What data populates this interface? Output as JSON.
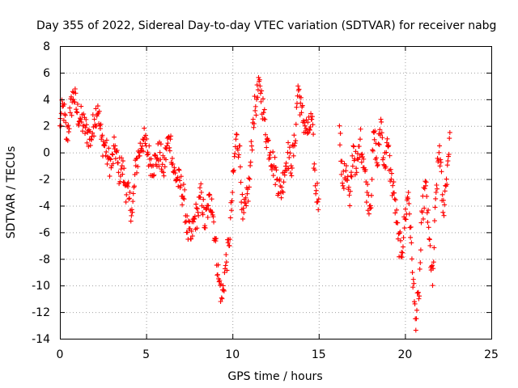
{
  "chart_data": {
    "type": "scatter",
    "title": "Day 355 of 2022, Sidereal Day-to-day VTEC variation (SDTVAR) for receiver nabg",
    "xlabel": "GPS time / hours",
    "ylabel": "SDTVAR / TECUs",
    "xlim": [
      0,
      25
    ],
    "ylim": [
      -14,
      8
    ],
    "xticks": [
      0,
      5,
      10,
      15,
      20,
      25
    ],
    "yticks": [
      -14,
      -12,
      -10,
      -8,
      -6,
      -4,
      -2,
      0,
      2,
      4,
      6,
      8
    ],
    "grid": true,
    "marker": "+",
    "color": "#ff0000",
    "series": [
      {
        "name": "SDTVAR",
        "x": [
          0.0,
          0.2,
          0.4,
          0.6,
          0.8,
          1.0,
          1.2,
          1.4,
          1.6,
          1.8,
          2.0,
          2.2,
          2.4,
          2.6,
          2.8,
          3.0,
          3.2,
          3.4,
          3.6,
          3.8,
          4.0,
          4.2,
          4.4,
          4.6,
          4.8,
          5.0,
          5.2,
          5.4,
          5.6,
          5.8,
          6.0,
          6.2,
          6.4,
          6.6,
          6.8,
          7.0,
          7.2,
          7.4,
          7.6,
          7.8,
          8.0,
          8.2,
          8.4,
          8.6,
          8.8,
          9.0,
          9.2,
          9.4,
          9.6,
          9.8,
          10.0,
          10.2,
          10.4,
          10.6,
          10.8,
          11.0,
          11.2,
          11.4,
          11.6,
          11.8,
          12.0,
          12.2,
          12.4,
          12.6,
          12.8,
          13.0,
          13.2,
          13.4,
          13.6,
          13.8,
          14.0,
          14.2,
          14.4,
          14.6,
          14.8,
          15.0,
          16.2,
          16.4,
          16.6,
          16.8,
          17.0,
          17.2,
          17.4,
          17.6,
          17.8,
          18.0,
          18.2,
          18.4,
          18.6,
          18.8,
          19.0,
          19.2,
          19.4,
          19.6,
          19.8,
          20.0,
          20.2,
          20.4,
          20.6,
          20.8,
          21.0,
          21.2,
          21.4,
          21.6,
          21.8,
          22.0,
          22.2,
          22.4,
          22.6
        ],
        "y": [
          2.0,
          3.5,
          1.0,
          3.0,
          4.5,
          3.0,
          2.5,
          2.0,
          1.5,
          1.0,
          2.5,
          3.5,
          1.0,
          0.5,
          -0.5,
          -1.0,
          0.5,
          -1.5,
          -1.0,
          -2.5,
          -3.5,
          -4.5,
          -1.0,
          0.0,
          1.0,
          0.5,
          -0.5,
          -1.0,
          -0.5,
          0.0,
          -1.5,
          0.5,
          1.0,
          -1.5,
          -2.0,
          -2.5,
          -3.5,
          -6.0,
          -6.5,
          -5.0,
          -4.5,
          -3.0,
          -5.5,
          -4.0,
          -3.5,
          -6.5,
          -9.5,
          -11.0,
          -8.5,
          -7.0,
          -3.0,
          1.0,
          0.5,
          -5.0,
          -4.0,
          -2.0,
          2.5,
          4.0,
          5.0,
          3.0,
          1.0,
          0.0,
          -1.0,
          -2.0,
          -3.0,
          -1.5,
          0.0,
          -1.0,
          0.5,
          5.0,
          3.0,
          2.0,
          1.5,
          2.5,
          -2.5,
          -3.5,
          2.0,
          -2.5,
          -1.0,
          -4.0,
          0.5,
          -1.5,
          1.0,
          -0.5,
          -3.0,
          -4.0,
          1.5,
          -1.0,
          2.5,
          -1.0,
          0.5,
          -2.0,
          -3.5,
          -6.5,
          -7.5,
          -5.0,
          -3.0,
          -8.0,
          -12.5,
          -11.0,
          -4.5,
          -2.5,
          -6.5,
          -10.0,
          -3.0,
          0.5,
          -4.5,
          -2.0,
          1.5
        ]
      }
    ]
  }
}
